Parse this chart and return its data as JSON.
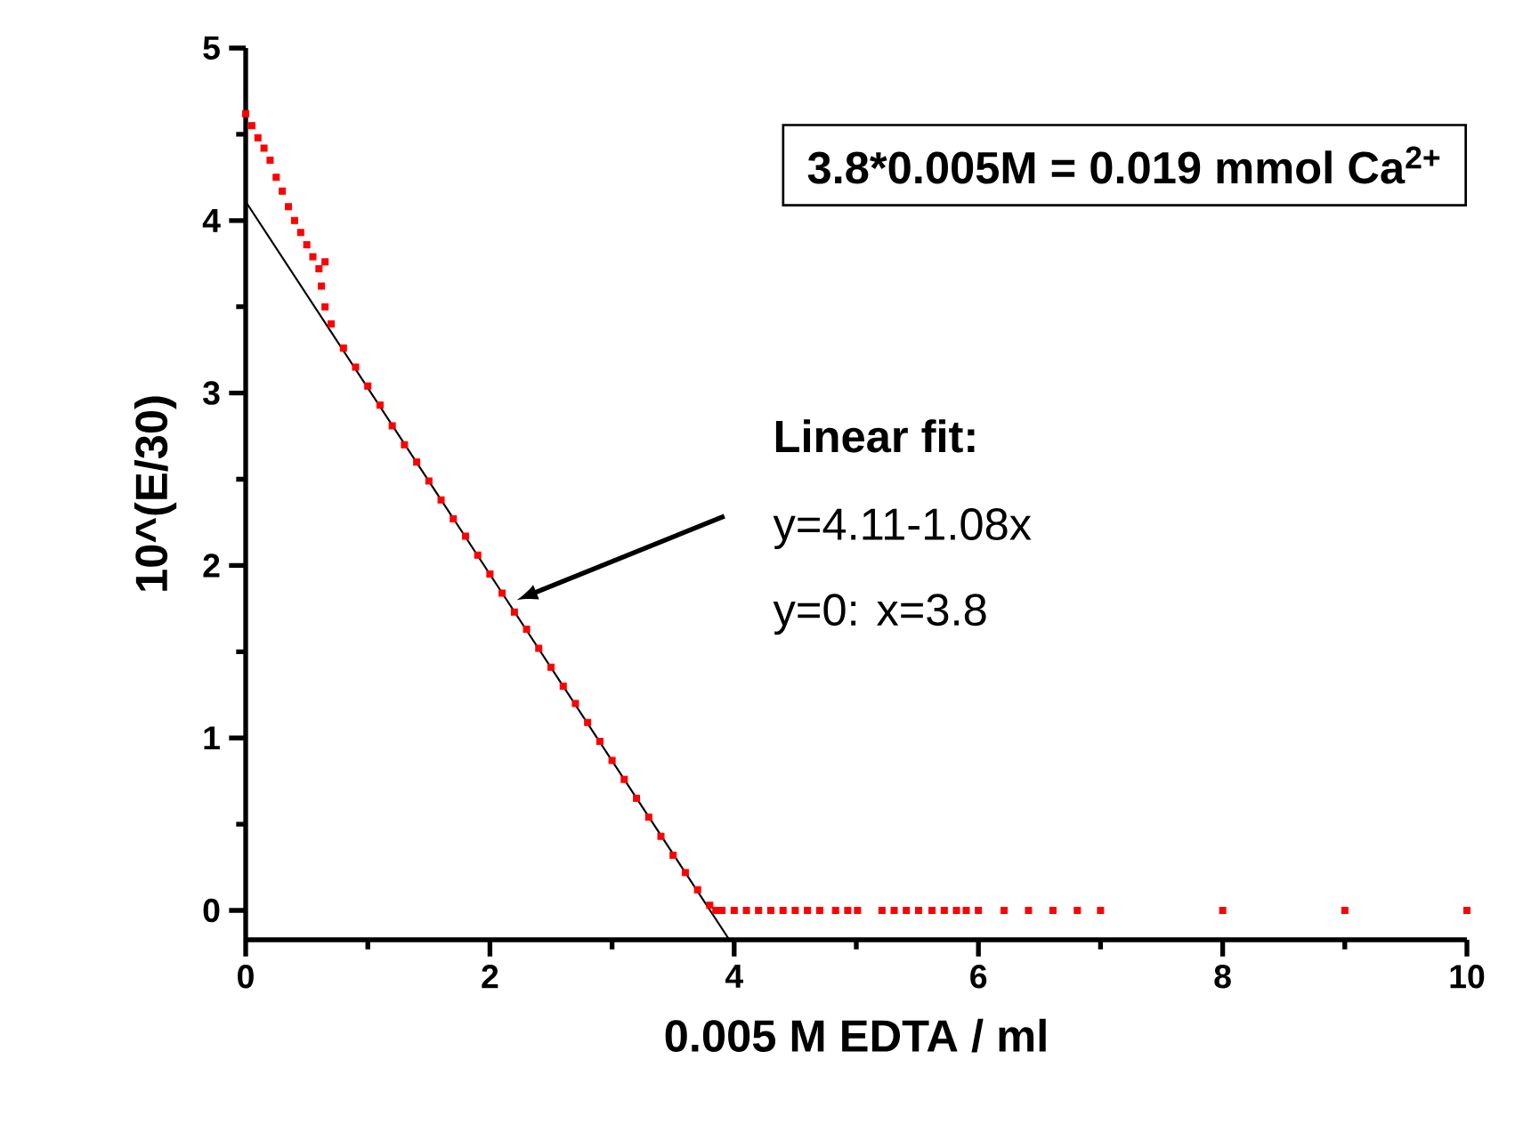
{
  "chart_data": {
    "type": "scatter",
    "xlabel": "0.005 M EDTA / ml",
    "ylabel": "10^(E/30)",
    "xlim": [
      0,
      10
    ],
    "ylim": [
      -0.17,
      5
    ],
    "xticks": [
      0,
      2,
      4,
      6,
      8,
      10
    ],
    "yticks": [
      0,
      1,
      2,
      3,
      4,
      5
    ],
    "grid": false,
    "marker": "square",
    "series": [
      {
        "color": "#ff0000",
        "x": [
          0,
          0.05,
          0.1,
          0.15,
          0.2,
          0.25,
          0.3,
          0.35,
          0.4,
          0.45,
          0.5,
          0.55,
          0.6,
          0.65,
          0.62,
          0.65,
          0.7,
          0.8,
          0.9,
          1.0,
          1.1,
          1.2,
          1.3,
          1.4,
          1.5,
          1.6,
          1.7,
          1.8,
          1.9,
          2.0,
          2.1,
          2.2,
          2.3,
          2.4,
          2.5,
          2.6,
          2.7,
          2.8,
          2.9,
          3.0,
          3.1,
          3.2,
          3.3,
          3.4,
          3.5,
          3.6,
          3.7,
          3.8,
          3.85,
          3.9,
          4.0,
          4.1,
          4.2,
          4.3,
          4.4,
          4.5,
          4.6,
          4.7,
          4.83,
          4.93,
          5.01,
          5.21,
          5.31,
          5.41,
          5.51,
          5.62,
          5.72,
          5.82,
          5.9,
          6.0,
          6.21,
          6.41,
          6.61,
          6.81,
          7.0,
          8.0,
          9.0,
          10.0
        ],
        "values": [
          4.62,
          4.55,
          4.48,
          4.42,
          4.35,
          4.25,
          4.17,
          4.08,
          4.0,
          3.93,
          3.86,
          3.79,
          3.72,
          3.76,
          3.62,
          3.5,
          3.4,
          3.26,
          3.15,
          3.04,
          2.93,
          2.81,
          2.7,
          2.6,
          2.49,
          2.38,
          2.27,
          2.17,
          2.06,
          1.95,
          1.84,
          1.73,
          1.63,
          1.52,
          1.41,
          1.3,
          1.2,
          1.09,
          0.98,
          0.87,
          0.76,
          0.65,
          0.54,
          0.43,
          0.32,
          0.22,
          0.12,
          0.03,
          0,
          0,
          0,
          0,
          0,
          0,
          0,
          0,
          0,
          0,
          0,
          0,
          0,
          0,
          0,
          0,
          0,
          0,
          0,
          0,
          0,
          0,
          0,
          0,
          0,
          0,
          0,
          0,
          0,
          0
        ]
      },
      {
        "type": "line",
        "color": "#000000",
        "marker": "none",
        "line_style": "solid",
        "x": [
          0,
          3.96
        ],
        "values": [
          4.11,
          -0.17
        ]
      }
    ],
    "annotations": [
      "3.8*0.005M = 0.019 mmol Ca$^{2+}$",
      "Linear fit:",
      "y=4.11-1.08x",
      "y=0: x=3.8"
    ]
  }
}
